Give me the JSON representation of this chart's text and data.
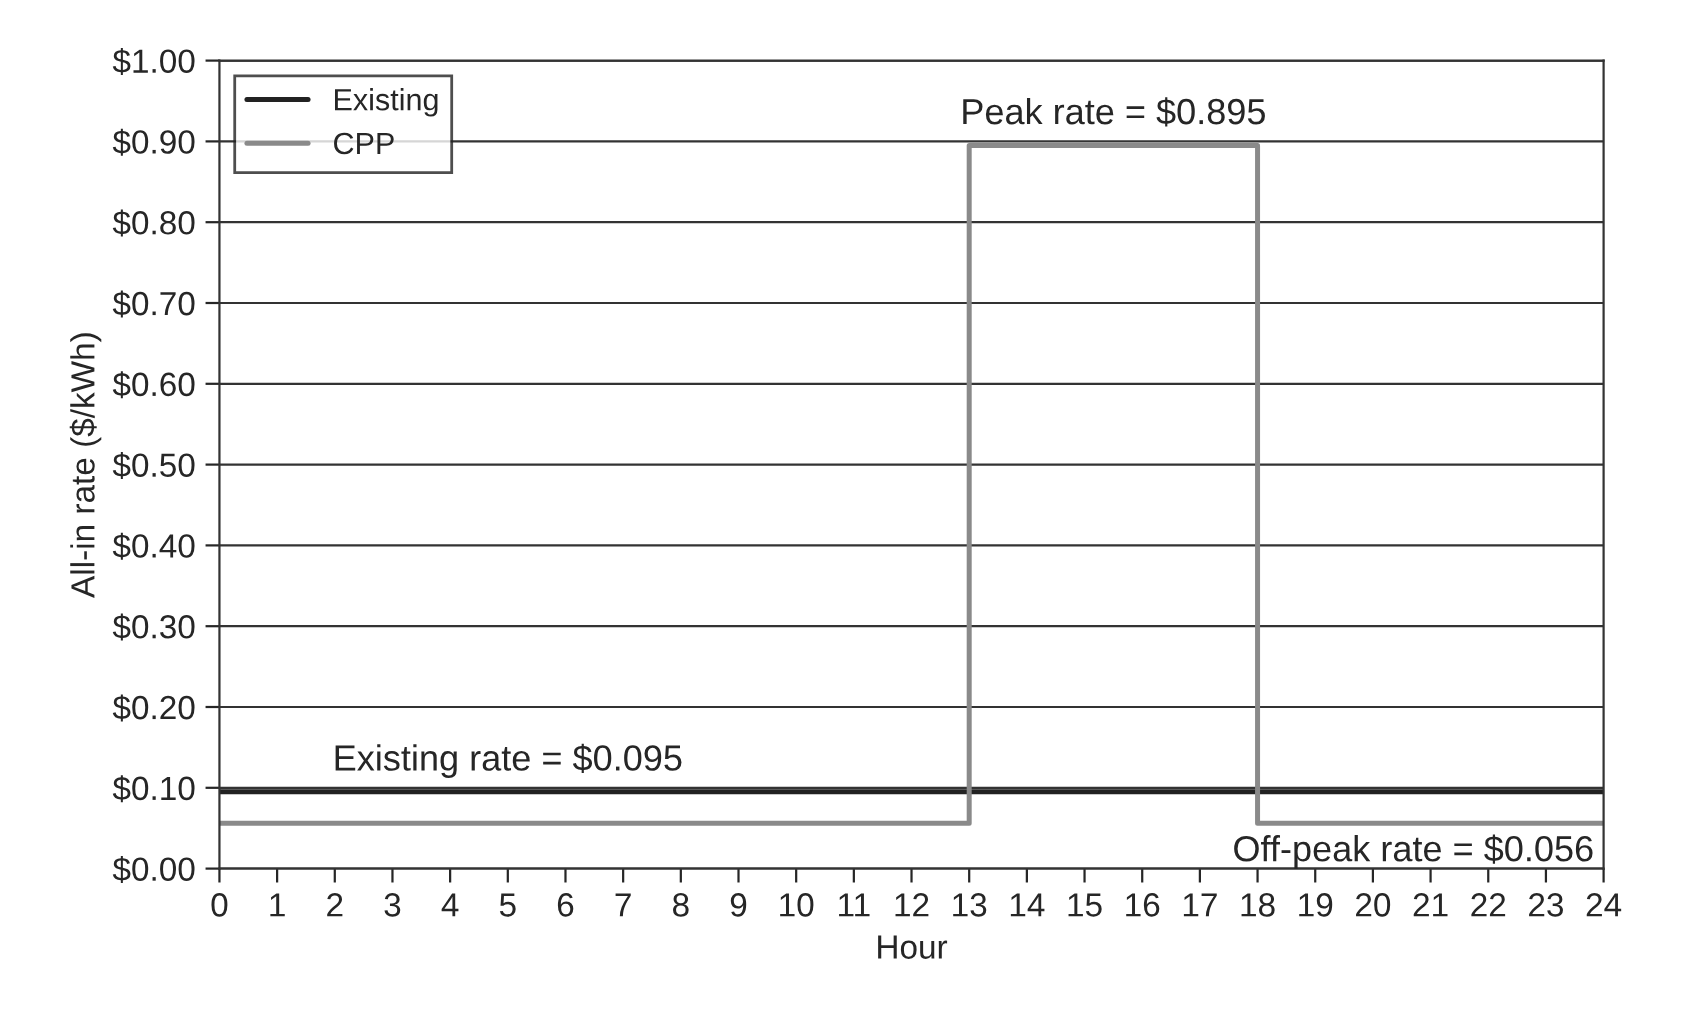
{
  "chart_data": {
    "type": "step",
    "xlabel": "Hour",
    "ylabel": "All-in rate ($/kWh)",
    "series": [
      {
        "name": "Existing",
        "color": "#222222",
        "x": [
          0,
          24
        ],
        "values": [
          0.095,
          0.095
        ]
      },
      {
        "name": "CPP",
        "color": "#8a8a8a",
        "x": [
          0,
          13,
          18,
          24
        ],
        "values": [
          0.056,
          0.895,
          0.056,
          0.056
        ]
      }
    ],
    "annotations": [
      {
        "text": "Peak rate = $0.895",
        "x": 15.5,
        "y": 0.895
      },
      {
        "text": "Existing rate = $0.095",
        "x": 5,
        "y": 0.095
      },
      {
        "text": "Off-peak rate = $0.056",
        "x": 20.7,
        "y": 0.056
      }
    ],
    "xlim": [
      0,
      24
    ],
    "xticks": [
      0,
      1,
      2,
      3,
      4,
      5,
      6,
      7,
      8,
      9,
      10,
      11,
      12,
      13,
      14,
      15,
      16,
      17,
      18,
      19,
      20,
      21,
      22,
      23,
      24
    ],
    "ylim": [
      0,
      1
    ],
    "yticks": [
      {
        "value": 0,
        "label": "$0.00"
      },
      {
        "value": 0.1,
        "label": "$0.10"
      },
      {
        "value": 0.2,
        "label": "$0.20"
      },
      {
        "value": 0.3,
        "label": "$0.30"
      },
      {
        "value": 0.4,
        "label": "$0.40"
      },
      {
        "value": 0.5,
        "label": "$0.50"
      },
      {
        "value": 0.6,
        "label": "$0.60"
      },
      {
        "value": 0.7,
        "label": "$0.70"
      },
      {
        "value": 0.8,
        "label": "$0.80"
      },
      {
        "value": 0.9,
        "label": "$0.90"
      },
      {
        "value": 1.0,
        "label": "$1.00"
      }
    ],
    "grid": "y",
    "legend": "top left"
  }
}
